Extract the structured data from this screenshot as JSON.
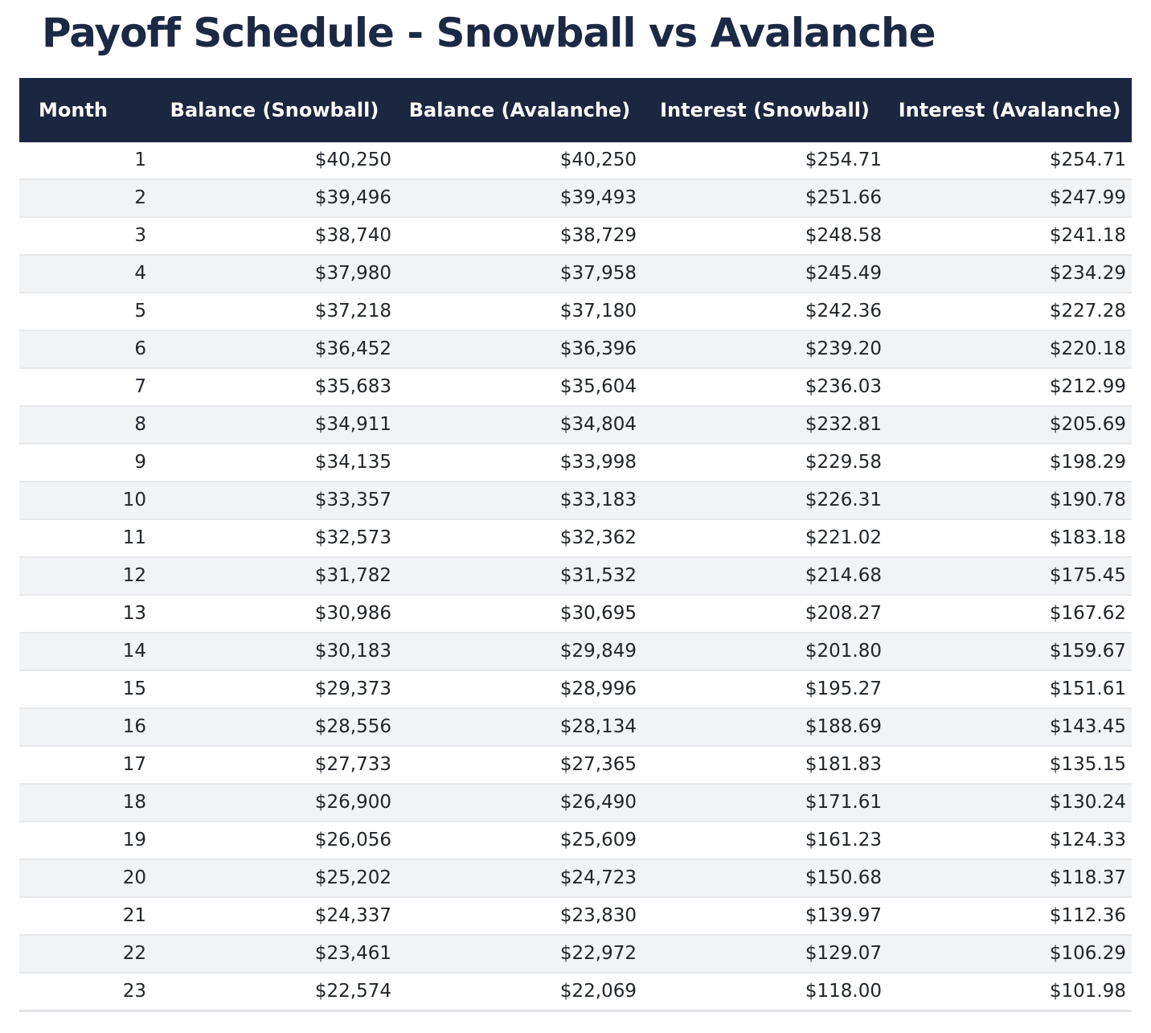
{
  "title": "Payoff Schedule - Snowball vs Avalanche",
  "table": {
    "columns": [
      "Month",
      "Balance (Snowball)",
      "Balance (Avalanche)",
      "Interest (Snowball)",
      "Interest (Avalanche)"
    ],
    "rows": [
      [
        "1",
        "$40,250",
        "$40,250",
        "$254.71",
        "$254.71"
      ],
      [
        "2",
        "$39,496",
        "$39,493",
        "$251.66",
        "$247.99"
      ],
      [
        "3",
        "$38,740",
        "$38,729",
        "$248.58",
        "$241.18"
      ],
      [
        "4",
        "$37,980",
        "$37,958",
        "$245.49",
        "$234.29"
      ],
      [
        "5",
        "$37,218",
        "$37,180",
        "$242.36",
        "$227.28"
      ],
      [
        "6",
        "$36,452",
        "$36,396",
        "$239.20",
        "$220.18"
      ],
      [
        "7",
        "$35,683",
        "$35,604",
        "$236.03",
        "$212.99"
      ],
      [
        "8",
        "$34,911",
        "$34,804",
        "$232.81",
        "$205.69"
      ],
      [
        "9",
        "$34,135",
        "$33,998",
        "$229.58",
        "$198.29"
      ],
      [
        "10",
        "$33,357",
        "$33,183",
        "$226.31",
        "$190.78"
      ],
      [
        "11",
        "$32,573",
        "$32,362",
        "$221.02",
        "$183.18"
      ],
      [
        "12",
        "$31,782",
        "$31,532",
        "$214.68",
        "$175.45"
      ],
      [
        "13",
        "$30,986",
        "$30,695",
        "$208.27",
        "$167.62"
      ],
      [
        "14",
        "$30,183",
        "$29,849",
        "$201.80",
        "$159.67"
      ],
      [
        "15",
        "$29,373",
        "$28,996",
        "$195.27",
        "$151.61"
      ],
      [
        "16",
        "$28,556",
        "$28,134",
        "$188.69",
        "$143.45"
      ],
      [
        "17",
        "$27,733",
        "$27,365",
        "$181.83",
        "$135.15"
      ],
      [
        "18",
        "$26,900",
        "$26,490",
        "$171.61",
        "$130.24"
      ],
      [
        "19",
        "$26,056",
        "$25,609",
        "$161.23",
        "$124.33"
      ],
      [
        "20",
        "$25,202",
        "$24,723",
        "$150.68",
        "$118.37"
      ],
      [
        "21",
        "$24,337",
        "$23,830",
        "$139.97",
        "$112.36"
      ],
      [
        "22",
        "$23,461",
        "$22,972",
        "$129.07",
        "$106.29"
      ],
      [
        "23",
        "$22,574",
        "$22,069",
        "$118.00",
        "$101.98"
      ]
    ]
  },
  "chart_data": {
    "type": "table",
    "title": "Payoff Schedule - Snowball vs Avalanche",
    "columns": [
      "Month",
      "Balance (Snowball)",
      "Balance (Avalanche)",
      "Interest (Snowball)",
      "Interest (Avalanche)"
    ],
    "months": [
      1,
      2,
      3,
      4,
      5,
      6,
      7,
      8,
      9,
      10,
      11,
      12,
      13,
      14,
      15,
      16,
      17,
      18,
      19,
      20,
      21,
      22,
      23
    ],
    "series": [
      {
        "name": "Balance (Snowball)",
        "values": [
          40250,
          39496,
          38740,
          37980,
          37218,
          36452,
          35683,
          34911,
          34135,
          33357,
          32573,
          31782,
          30986,
          30183,
          29373,
          28556,
          27733,
          26900,
          26056,
          25202,
          24337,
          23461,
          22574
        ]
      },
      {
        "name": "Balance (Avalanche)",
        "values": [
          40250,
          39493,
          38729,
          37958,
          37180,
          36396,
          35604,
          34804,
          33998,
          33183,
          32362,
          31532,
          30695,
          29849,
          28996,
          28134,
          27365,
          26490,
          25609,
          24723,
          23830,
          22972,
          22069
        ]
      },
      {
        "name": "Interest (Snowball)",
        "values": [
          254.71,
          251.66,
          248.58,
          245.49,
          242.36,
          239.2,
          236.03,
          232.81,
          229.58,
          226.31,
          221.02,
          214.68,
          208.27,
          201.8,
          195.27,
          188.69,
          181.83,
          171.61,
          161.23,
          150.68,
          139.97,
          129.07,
          118.0
        ]
      },
      {
        "name": "Interest (Avalanche)",
        "values": [
          254.71,
          247.99,
          241.18,
          234.29,
          227.28,
          220.18,
          212.99,
          205.69,
          198.29,
          190.78,
          183.18,
          175.45,
          167.62,
          159.67,
          151.61,
          143.45,
          135.15,
          130.24,
          124.33,
          118.37,
          112.36,
          106.29,
          101.98
        ]
      }
    ]
  },
  "colors": {
    "header_bg": "#1b2740",
    "header_text": "#ffffff",
    "row_stripe": "#f2f3f5",
    "title_text": "#1b2945",
    "body_text": "#212529",
    "row_border": "#e8e9ec"
  }
}
